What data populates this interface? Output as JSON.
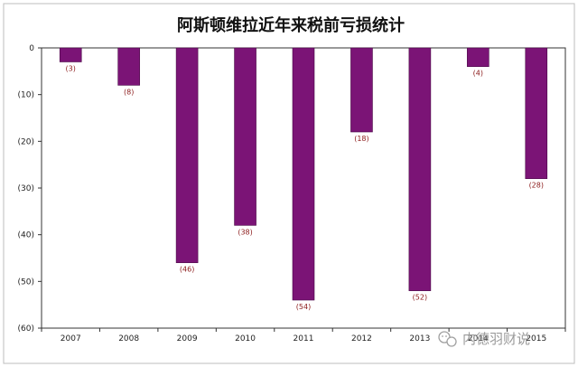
{
  "chart_data": {
    "type": "bar",
    "title": "阿斯顿维拉近年来税前亏损统计",
    "categories": [
      "2007",
      "2008",
      "2009",
      "2010",
      "2011",
      "2012",
      "2013",
      "2014",
      "2015"
    ],
    "values": [
      -3,
      -8,
      -46,
      -38,
      -54,
      -18,
      -52,
      -4,
      -28
    ],
    "value_labels": [
      "(3)",
      "(8)",
      "(46)",
      "(38)",
      "(54)",
      "(18)",
      "(52)",
      "(4)",
      "(28)"
    ],
    "y_ticks": [
      0,
      -10,
      -20,
      -30,
      -40,
      -50,
      -60
    ],
    "y_tick_labels": [
      "0",
      "(10)",
      "(20)",
      "(30)",
      "(40)",
      "(50)",
      "(60)"
    ],
    "ylim": [
      -60,
      0
    ],
    "xlabel": "",
    "ylabel": "",
    "grid": false,
    "legend": "none",
    "colors": {
      "bar": "#7b1476",
      "bar_edge": "#4a0a47",
      "axis": "#333333",
      "value_label": "#8b1a1a",
      "frame": "#bdbdbd"
    }
  },
  "watermark": {
    "text": "内德羽财说",
    "icon": "wechat-icon"
  }
}
